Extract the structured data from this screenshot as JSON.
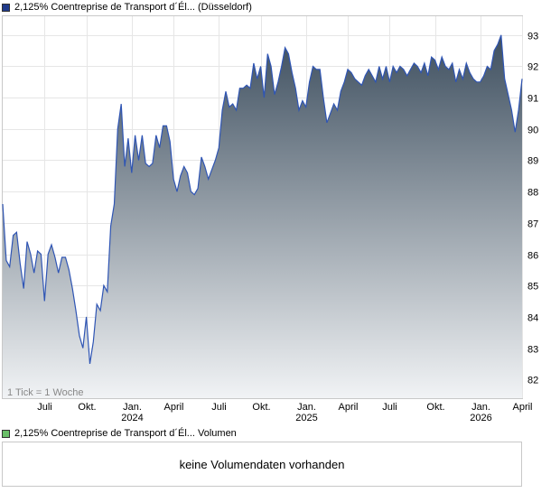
{
  "legend_price": {
    "label": "2,125% Coentreprise de Transport d´Él...  (Düsseldorf)",
    "color": "#1f3a8a"
  },
  "legend_volume": {
    "label": "2,125% Coentreprise de Transport d´Él...  Volumen",
    "color": "#6abf69"
  },
  "tick_note": "1 Tick = 1 Woche",
  "volume_message": "keine Volumendaten vorhanden",
  "chart_data": {
    "type": "area",
    "line_color": "#2f55b4",
    "fill_top_color": "#3e4f5f",
    "fill_bottom_color": "#f1f3f5",
    "ylim": [
      81.4,
      93.6
    ],
    "yticks": [
      82,
      83,
      84,
      85,
      86,
      87,
      88,
      89,
      90,
      91,
      92,
      93
    ],
    "xlim": [
      0,
      149
    ],
    "xticks": [
      {
        "x": 12,
        "label": "Juli",
        "year": ""
      },
      {
        "x": 24,
        "label": "Okt.",
        "year": ""
      },
      {
        "x": 37,
        "label": "Jan.",
        "year": "2024"
      },
      {
        "x": 49,
        "label": "April",
        "year": ""
      },
      {
        "x": 62,
        "label": "Juli",
        "year": ""
      },
      {
        "x": 74,
        "label": "Okt.",
        "year": ""
      },
      {
        "x": 87,
        "label": "Jan.",
        "year": "2025"
      },
      {
        "x": 99,
        "label": "April",
        "year": ""
      },
      {
        "x": 111,
        "label": "Juli",
        "year": ""
      },
      {
        "x": 124,
        "label": "Okt.",
        "year": ""
      },
      {
        "x": 137,
        "label": "Jan.",
        "year": "2026"
      },
      {
        "x": 149,
        "label": "April",
        "year": ""
      }
    ],
    "x": [
      0,
      1,
      2,
      3,
      4,
      5,
      6,
      7,
      8,
      9,
      10,
      11,
      12,
      13,
      14,
      15,
      16,
      17,
      18,
      19,
      20,
      21,
      22,
      23,
      24,
      25,
      26,
      27,
      28,
      29,
      30,
      31,
      32,
      33,
      34,
      35,
      36,
      37,
      38,
      39,
      40,
      41,
      42,
      43,
      44,
      45,
      46,
      47,
      48,
      49,
      50,
      51,
      52,
      53,
      54,
      55,
      56,
      57,
      58,
      59,
      60,
      61,
      62,
      63,
      64,
      65,
      66,
      67,
      68,
      69,
      70,
      71,
      72,
      73,
      74,
      75,
      76,
      77,
      78,
      79,
      80,
      81,
      82,
      83,
      84,
      85,
      86,
      87,
      88,
      89,
      90,
      91,
      92,
      93,
      94,
      95,
      96,
      97,
      98,
      99,
      100,
      101,
      102,
      103,
      104,
      105,
      106,
      107,
      108,
      109,
      110,
      111,
      112,
      113,
      114,
      115,
      116,
      117,
      118,
      119,
      120,
      121,
      122,
      123,
      124,
      125,
      126,
      127,
      128,
      129,
      130,
      131,
      132,
      133,
      134,
      135,
      136,
      137,
      138,
      139,
      140,
      141,
      142,
      143,
      144,
      145,
      146,
      147,
      148,
      149
    ],
    "values": [
      87.6,
      85.8,
      85.6,
      86.6,
      86.7,
      85.7,
      84.9,
      86.4,
      86.0,
      85.4,
      86.1,
      86.0,
      84.5,
      86.0,
      86.3,
      85.9,
      85.4,
      85.9,
      85.9,
      85.5,
      84.9,
      84.2,
      83.4,
      83.0,
      84.0,
      82.5,
      83.2,
      84.4,
      84.2,
      85.0,
      84.8,
      86.9,
      87.6,
      90.0,
      90.8,
      88.8,
      89.7,
      88.6,
      89.8,
      89.0,
      89.8,
      88.9,
      88.8,
      88.9,
      89.8,
      89.4,
      90.1,
      90.1,
      89.6,
      88.4,
      88.0,
      88.5,
      88.8,
      88.6,
      88.0,
      87.9,
      88.1,
      89.1,
      88.8,
      88.4,
      88.7,
      89.0,
      89.4,
      90.6,
      91.2,
      90.7,
      90.8,
      90.6,
      91.3,
      91.3,
      91.4,
      91.3,
      92.1,
      91.6,
      92.0,
      91.0,
      92.4,
      92.0,
      91.1,
      91.5,
      92.0,
      92.6,
      92.4,
      91.8,
      91.3,
      90.6,
      90.9,
      90.7,
      91.5,
      92.0,
      91.9,
      91.9,
      91.0,
      90.2,
      90.5,
      90.8,
      90.6,
      91.2,
      91.5,
      91.9,
      91.8,
      91.6,
      91.5,
      91.4,
      91.7,
      91.9,
      91.7,
      91.5,
      92.0,
      91.6,
      92.0,
      91.5,
      92.0,
      91.8,
      92.0,
      91.9,
      91.7,
      91.9,
      92.1,
      92.0,
      91.8,
      92.1,
      91.7,
      92.3,
      92.2,
      91.9,
      92.3,
      92.0,
      91.9,
      92.1,
      91.5,
      91.9,
      91.6,
      92.1,
      91.8,
      91.6,
      91.5,
      91.5,
      91.7,
      92.0,
      91.9,
      92.5,
      92.7,
      93.0,
      91.6,
      91.1,
      90.6,
      89.9,
      90.6,
      91.6
    ]
  }
}
